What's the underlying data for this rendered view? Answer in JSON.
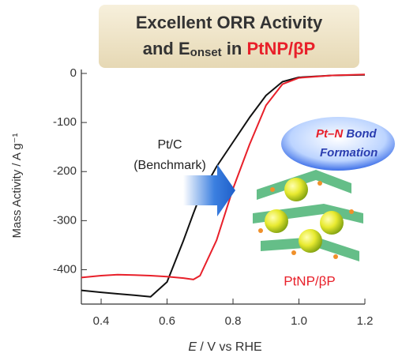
{
  "chart_data": {
    "type": "line",
    "title_line1": "Excellent ORR Activity",
    "title_line2_parts": [
      "and E",
      "onset",
      " in ",
      "PtNP/βP"
    ],
    "x_label_parts": [
      "E",
      " / V vs RHE"
    ],
    "y_label": "Mass Activity / A g⁻¹",
    "x": [
      0.34,
      0.4,
      0.45,
      0.5,
      0.55,
      0.6,
      0.65,
      0.68,
      0.7,
      0.75,
      0.8,
      0.85,
      0.9,
      0.95,
      1.0,
      1.1,
      1.2
    ],
    "series": [
      {
        "name": "Pt/C",
        "color": "#111111",
        "values": [
          -442,
          -446,
          -449,
          -452,
          -455,
          -425,
          -340,
          -285,
          -250,
          -190,
          -140,
          -90,
          -45,
          -17,
          -8,
          -4,
          -3
        ]
      },
      {
        "name": "PtNP/βP",
        "color": "#e8202a",
        "values": [
          -416,
          -412,
          -410,
          -411,
          -412,
          -414,
          -417,
          -420,
          -412,
          -340,
          -235,
          -145,
          -65,
          -22,
          -9,
          -4,
          -2
        ]
      }
    ],
    "annotations": [
      "(Benchmark)",
      "Pt–N",
      " Bond",
      "Formation"
    ],
    "xlim": [
      0.34,
      1.2
    ],
    "ylim": [
      -470,
      8
    ],
    "xticks": [
      0.4,
      0.6,
      0.8,
      {
        "value": 1,
        "label": "1.0"
      },
      1.2
    ],
    "yticks": [
      0,
      -100,
      -200,
      -300,
      -400
    ]
  }
}
